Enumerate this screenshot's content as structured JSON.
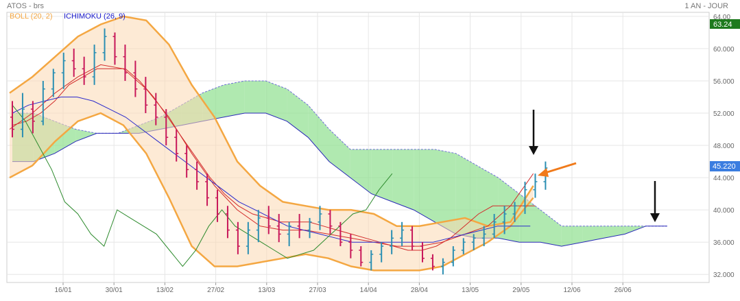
{
  "chart_data": {
    "type": "line",
    "title": "ATOS - brs",
    "period": "1 AN - JOUR",
    "legend": [
      {
        "name": "BOLL (20, 2)",
        "color": "#f4a742"
      },
      {
        "name": "ICHIMOKU (26, 9)",
        "color": "#1a1acc"
      }
    ],
    "last_price_label": "63.24",
    "current_price_label": "45.220",
    "x_tick_labels": [
      "16/01",
      "30/01",
      "13/02",
      "27/02",
      "13/03",
      "27/03",
      "14/04",
      "28/04",
      "13/05",
      "29/05",
      "12/06",
      "26/06"
    ],
    "y_tick_labels": [
      "32.000",
      "36.000",
      "40.000",
      "44.000",
      "48.000",
      "52.000",
      "56.000",
      "60.000",
      "64.00"
    ],
    "ylim": [
      31.0,
      64.5
    ],
    "grid": true,
    "bars": [
      [
        51.5,
        53.5,
        49.0,
        50.0
      ],
      [
        50.0,
        54.5,
        49.0,
        52.5
      ],
      [
        52.5,
        53.5,
        49.5,
        51.0
      ],
      [
        51.0,
        56.0,
        50.5,
        55.0
      ],
      [
        55.0,
        57.5,
        54.0,
        57.0
      ],
      [
        57.0,
        59.5,
        55.0,
        58.5
      ],
      [
        58.5,
        60.0,
        56.5,
        57.5
      ],
      [
        57.5,
        59.0,
        55.5,
        56.5
      ],
      [
        56.5,
        60.5,
        55.5,
        59.5
      ],
      [
        59.5,
        62.5,
        58.5,
        61.5
      ],
      [
        61.5,
        62.0,
        58.0,
        59.0
      ],
      [
        59.0,
        60.5,
        56.0,
        57.0
      ],
      [
        57.0,
        58.5,
        54.0,
        55.0
      ],
      [
        55.0,
        56.5,
        52.0,
        53.0
      ],
      [
        53.0,
        54.5,
        50.5,
        51.5
      ],
      [
        51.5,
        52.5,
        48.0,
        49.0
      ],
      [
        49.0,
        50.0,
        46.0,
        47.0
      ],
      [
        47.0,
        48.0,
        44.0,
        45.0
      ],
      [
        45.0,
        46.0,
        42.5,
        43.5
      ],
      [
        43.5,
        44.5,
        40.5,
        41.5
      ],
      [
        41.5,
        42.5,
        38.5,
        39.5
      ],
      [
        39.5,
        40.5,
        36.5,
        37.5
      ],
      [
        37.5,
        38.5,
        34.5,
        35.5
      ],
      [
        35.5,
        38.5,
        34.5,
        37.5
      ],
      [
        37.5,
        40.0,
        36.0,
        39.0
      ],
      [
        39.0,
        40.5,
        37.0,
        38.0
      ],
      [
        38.0,
        39.5,
        36.0,
        37.0
      ],
      [
        37.0,
        38.5,
        35.5,
        38.0
      ],
      [
        38.0,
        39.5,
        36.5,
        37.5
      ],
      [
        37.5,
        39.0,
        36.5,
        38.5
      ],
      [
        38.5,
        40.5,
        37.5,
        39.5
      ],
      [
        39.5,
        40.0,
        37.0,
        38.0
      ],
      [
        38.0,
        38.5,
        35.5,
        36.0
      ],
      [
        36.0,
        37.0,
        34.0,
        35.0
      ],
      [
        35.0,
        35.5,
        33.0,
        33.5
      ],
      [
        33.5,
        35.0,
        32.5,
        34.5
      ],
      [
        34.5,
        36.0,
        33.5,
        35.5
      ],
      [
        35.5,
        37.5,
        34.5,
        36.5
      ],
      [
        36.5,
        38.5,
        35.5,
        37.5
      ],
      [
        37.5,
        38.0,
        35.0,
        35.5
      ],
      [
        35.5,
        36.0,
        33.5,
        34.0
      ],
      [
        34.0,
        34.5,
        32.5,
        33.0
      ],
      [
        33.0,
        34.0,
        32.0,
        33.5
      ],
      [
        33.5,
        35.5,
        33.0,
        35.0
      ],
      [
        35.0,
        36.5,
        34.5,
        36.0
      ],
      [
        36.0,
        37.0,
        35.0,
        36.5
      ],
      [
        36.5,
        38.0,
        35.5,
        37.0
      ],
      [
        37.0,
        39.5,
        36.5,
        38.5
      ],
      [
        38.5,
        40.5,
        37.0,
        39.5
      ],
      [
        39.5,
        41.0,
        38.5,
        40.5
      ],
      [
        40.5,
        43.5,
        39.5,
        42.5
      ],
      [
        42.5,
        44.5,
        41.5,
        43.5
      ],
      [
        43.5,
        46.0,
        42.5,
        45.2
      ]
    ],
    "ichimoku": {
      "tenkan": [
        50.5,
        51.0,
        52.0,
        53.5,
        55.5,
        56.5,
        57.5,
        57.5,
        57.5,
        56.0,
        54.0,
        51.5,
        49.0,
        46.5,
        44.0,
        42.0,
        40.5,
        39.5,
        39.0,
        38.5,
        38.5,
        38.5,
        38.0,
        37.5,
        37.0,
        36.5,
        36.0,
        35.5,
        35.0,
        35.0,
        35.5,
        36.5,
        38.0,
        39.5,
        40.5,
        40.5,
        40.5,
        40.5
      ],
      "kijun": [
        52.0,
        53.0,
        53.5,
        54.0,
        54.0,
        53.5,
        52.5,
        51.5,
        50.0,
        48.5,
        47.0,
        45.5,
        44.0,
        42.5,
        41.0,
        40.0,
        39.0,
        38.0,
        37.5,
        37.0,
        36.5,
        36.0,
        36.0,
        36.0,
        36.0,
        36.0,
        36.0,
        36.5,
        37.0,
        37.5,
        38.0,
        38.0,
        38.0
      ],
      "senkou_a": [
        52.0,
        52.0,
        51.0,
        50.0,
        49.5,
        49.5,
        50.5,
        51.5,
        53.0,
        54.5,
        55.5,
        56.0,
        56.0,
        55.0,
        53.0,
        50.0,
        47.5,
        47.5,
        47.5,
        47.5,
        47.5,
        47.0,
        45.5,
        44.0,
        42.0,
        40.0,
        38.0,
        38.0,
        38.0,
        38.0,
        38.0,
        38.0
      ],
      "senkou_b": [
        46.0,
        46.0,
        47.0,
        48.5,
        49.5,
        49.5,
        49.5,
        50.0,
        50.5,
        51.0,
        51.5,
        52.0,
        52.0,
        51.0,
        49.0,
        46.0,
        44.0,
        42.0,
        41.0,
        40.0,
        38.5,
        37.0,
        36.5,
        36.5,
        36.0,
        36.0,
        35.5,
        36.0,
        36.5,
        37.0,
        38.0,
        38.0
      ],
      "chikou": [
        53.0,
        51.0,
        48.0,
        45.0,
        41.0,
        39.5,
        37.0,
        35.5,
        40.0,
        39.0,
        38.0,
        37.0,
        35.0,
        33.0,
        35.0,
        38.0,
        40.0,
        38.0,
        37.0,
        36.0,
        35.0,
        34.0,
        34.5,
        35.0,
        36.5,
        38.0,
        39.5,
        40.0,
        42.5,
        44.5
      ]
    },
    "bollinger": {
      "upper": [
        54.5,
        56.5,
        59.0,
        61.5,
        63.0,
        64.0,
        63.5,
        60.5,
        55.5,
        51.5,
        46.0,
        43.0,
        41.0,
        40.5,
        40.0,
        40.0,
        39.5,
        38.0,
        38.0,
        38.5,
        39.0,
        38.0,
        38.5,
        43.0
      ],
      "middle": [
        50.0,
        52.0,
        54.5,
        56.5,
        58.0,
        57.5,
        55.0,
        51.5,
        47.0,
        43.0,
        40.0,
        38.0,
        37.5,
        37.5,
        37.0,
        36.5,
        36.0,
        35.5,
        35.5,
        36.0,
        37.0,
        38.0,
        40.5,
        44.5
      ],
      "lower": [
        44.0,
        45.5,
        48.5,
        51.0,
        52.0,
        50.5,
        47.0,
        41.5,
        35.5,
        33.0,
        33.0,
        33.5,
        34.0,
        34.5,
        34.0,
        33.0,
        32.5,
        32.5,
        32.5,
        33.0,
        34.5,
        36.0,
        38.0,
        41.5
      ]
    }
  }
}
